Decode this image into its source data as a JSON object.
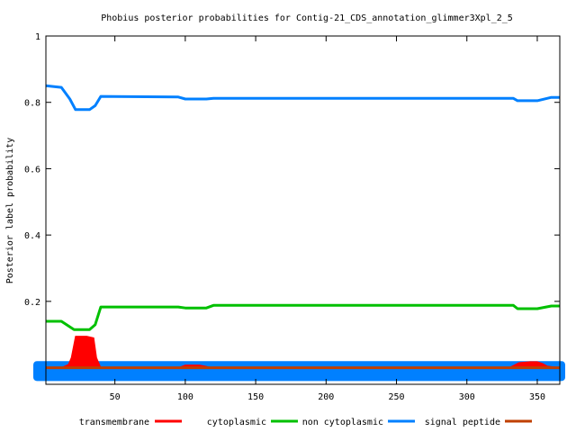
{
  "chart_data": {
    "type": "line",
    "title": "Phobius posterior probabilities for Contig-21_CDS_annotation_glimmer3Xpl_2_5",
    "xlabel": "",
    "ylabel": "Posterior label probability",
    "xlim": [
      1,
      366
    ],
    "ylim": [
      -0.05,
      1
    ],
    "xticks": [
      50,
      100,
      150,
      200,
      250,
      300,
      350
    ],
    "yticks": [
      0.2,
      0.4,
      0.6,
      0.8,
      1
    ],
    "ytick_labels": [
      "0.2",
      "0.4",
      "0.6",
      "0.8",
      "1"
    ],
    "grid": false,
    "legend_position": "bottom",
    "series": [
      {
        "name": "transmembrane",
        "color": "#ff0000",
        "style": "filled-area",
        "x": [
          1,
          12,
          17,
          19,
          22,
          30,
          35,
          37,
          40,
          95,
          100,
          110,
          115,
          118,
          330,
          337,
          345,
          350,
          354,
          357,
          366
        ],
        "y": [
          0,
          0,
          0.01,
          0.03,
          0.095,
          0.095,
          0.09,
          0.03,
          0,
          0,
          0.008,
          0.008,
          0.004,
          0,
          0,
          0.015,
          0.018,
          0.018,
          0.012,
          0.005,
          0
        ]
      },
      {
        "name": "cytoplasmic",
        "color": "#00c000",
        "style": "line",
        "x": [
          1,
          12,
          21,
          32,
          36,
          40,
          95,
          100,
          115,
          120,
          333,
          336,
          350,
          360,
          366
        ],
        "y": [
          0.14,
          0.14,
          0.115,
          0.115,
          0.13,
          0.183,
          0.183,
          0.18,
          0.18,
          0.188,
          0.188,
          0.178,
          0.178,
          0.186,
          0.186
        ]
      },
      {
        "name": "non cytoplasmic",
        "color": "#0080ff",
        "style": "line",
        "x": [
          1,
          12,
          18,
          22,
          32,
          36,
          40,
          95,
          100,
          115,
          120,
          333,
          336,
          350,
          360,
          366
        ],
        "y": [
          0.85,
          0.845,
          0.81,
          0.778,
          0.778,
          0.79,
          0.818,
          0.816,
          0.81,
          0.81,
          0.812,
          0.812,
          0.805,
          0.805,
          0.815,
          0.815
        ]
      },
      {
        "name": "signal peptide",
        "color": "#c04000",
        "style": "line",
        "x": [
          1,
          366
        ],
        "y": [
          0,
          0
        ]
      }
    ],
    "annotations": [
      {
        "type": "band",
        "name": "topology-band",
        "color": "#0080ff",
        "x": [
          1,
          366
        ],
        "y": [
          -0.04,
          0.02
        ]
      }
    ]
  }
}
